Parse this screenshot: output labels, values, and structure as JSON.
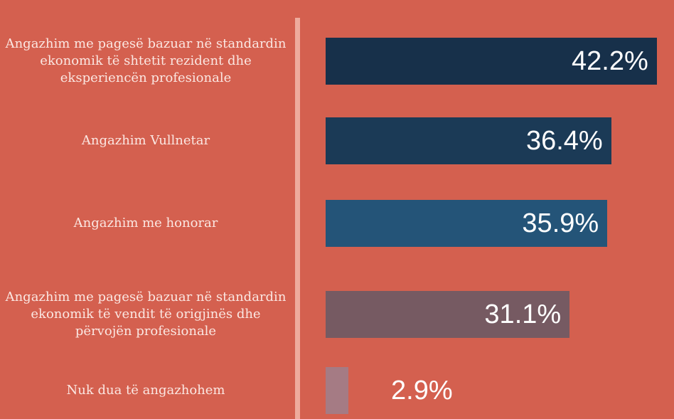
{
  "chart_data": {
    "type": "bar",
    "orientation": "horizontal",
    "categories": [
      "Angazhim me pagesë bazuar në standardin ekonomik të shtetit rezident dhe eksperiencën profesionale",
      "Angazhim Vullnetar",
      "Angazhim me honorar",
      "Angazhim me pagesë bazuar në standardin ekonomik të vendit të origjinës dhe përvojën profesionale",
      "Nuk dua të angazhohem"
    ],
    "values": [
      42.2,
      36.4,
      35.9,
      31.1,
      2.9
    ],
    "value_labels": [
      "42.2%",
      "36.4%",
      "35.9%",
      "31.1%",
      "2.9%"
    ],
    "colors": [
      "#17304a",
      "#1b3a56",
      "#245478",
      "#765a62",
      "#a57b84"
    ]
  }
}
